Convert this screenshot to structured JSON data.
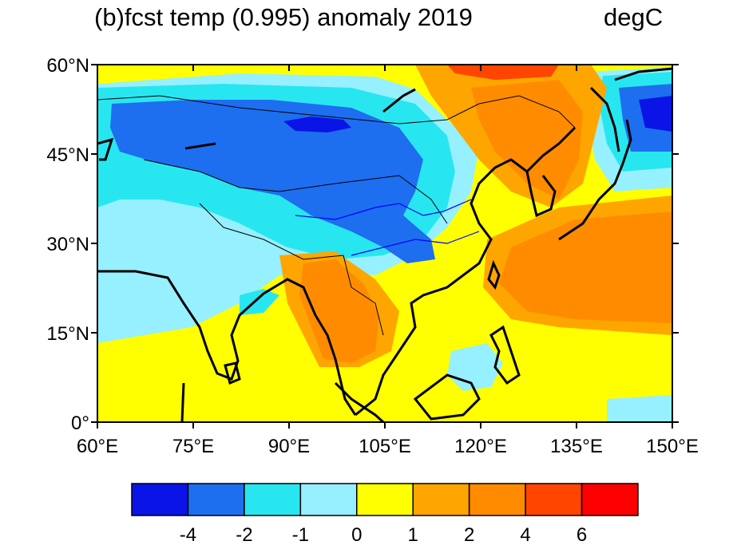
{
  "title": "(b)fcst temp (0.995) anomaly 2019",
  "units": "degC",
  "map": {
    "lon_range": [
      60,
      150
    ],
    "lat_range": [
      0,
      60
    ],
    "lon_ticks": [
      60,
      75,
      90,
      105,
      120,
      135,
      150
    ],
    "lon_tick_labels": [
      "60°E",
      "75°E",
      "90°E",
      "105°E",
      "120°E",
      "135°E",
      "150°E"
    ],
    "lat_ticks": [
      0,
      15,
      30,
      45,
      60
    ],
    "lat_tick_labels": [
      "0°",
      "15°N",
      "30°N",
      "45°N",
      "60°N"
    ]
  },
  "colorbar": {
    "colors": [
      "#0a14e6",
      "#1e6ef0",
      "#28e6f0",
      "#96f0ff",
      "#ffff00",
      "#ffa500",
      "#ff8c00",
      "#ff4500",
      "#ff0000"
    ],
    "boundaries": [
      "-4",
      "-2",
      "-1",
      "0",
      "1",
      "2",
      "4",
      "6"
    ]
  }
}
